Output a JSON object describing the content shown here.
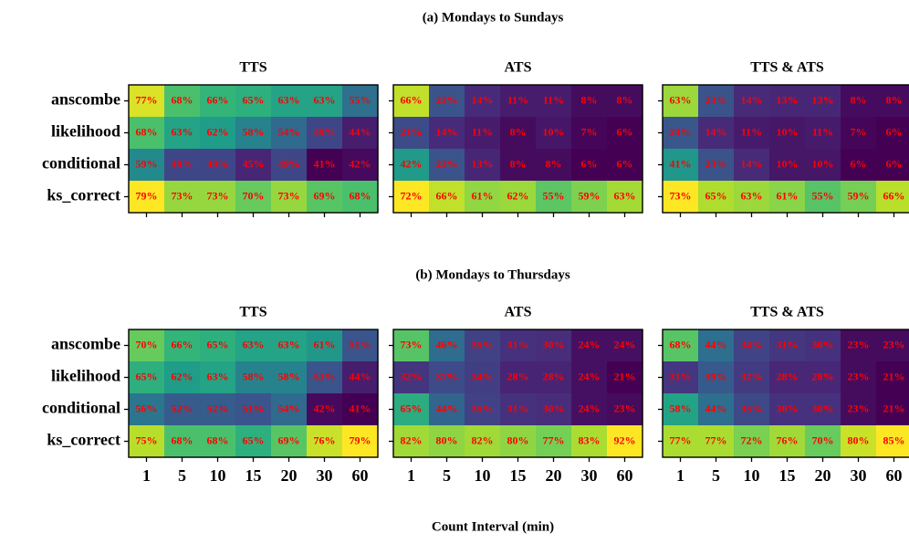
{
  "chart_data": {
    "type": "heatmap",
    "colormap": "viridis",
    "value_label_color": "#ff0000",
    "xlabel": "Count Interval (min)",
    "x_ticks": [
      "1",
      "5",
      "10",
      "15",
      "20",
      "30",
      "60"
    ],
    "y_ticks": [
      "anscombe",
      "likelihood",
      "conditional",
      "ks_correct"
    ],
    "sections": [
      {
        "title": "(a) Mondays to Sundays",
        "panels": [
          {
            "title": "TTS",
            "values": [
              [
                77,
                68,
                66,
                65,
                63,
                63,
                55
              ],
              [
                68,
                63,
                62,
                58,
                54,
                49,
                44
              ],
              [
                59,
                49,
                49,
                45,
                49,
                41,
                42
              ],
              [
                79,
                73,
                73,
                70,
                73,
                69,
                68
              ]
            ]
          },
          {
            "title": "ATS",
            "values": [
              [
                66,
                23,
                14,
                11,
                11,
                8,
                8
              ],
              [
                21,
                14,
                11,
                8,
                10,
                7,
                6
              ],
              [
                42,
                23,
                13,
                8,
                8,
                6,
                6
              ],
              [
                72,
                66,
                61,
                62,
                55,
                59,
                63
              ]
            ]
          },
          {
            "title": "TTS & ATS",
            "values": [
              [
                63,
                23,
                14,
                13,
                13,
                8,
                8
              ],
              [
                24,
                14,
                11,
                10,
                11,
                7,
                6
              ],
              [
                41,
                23,
                14,
                10,
                10,
                6,
                6
              ],
              [
                73,
                65,
                63,
                61,
                55,
                59,
                66
              ]
            ]
          }
        ]
      },
      {
        "title": "(b) Mondays to Thursdays",
        "panels": [
          {
            "title": "TTS",
            "values": [
              [
                70,
                66,
                65,
                63,
                63,
                61,
                51
              ],
              [
                65,
                62,
                63,
                58,
                58,
                51,
                44
              ],
              [
                56,
                52,
                52,
                51,
                54,
                42,
                41
              ],
              [
                75,
                68,
                68,
                65,
                69,
                76,
                79
              ]
            ]
          },
          {
            "title": "ATS",
            "values": [
              [
                73,
                46,
                35,
                31,
                30,
                24,
                24
              ],
              [
                32,
                37,
                34,
                28,
                28,
                24,
                21
              ],
              [
                65,
                44,
                35,
                31,
                30,
                24,
                23
              ],
              [
                82,
                80,
                82,
                80,
                77,
                83,
                92
              ]
            ]
          },
          {
            "title": "TTS & ATS",
            "values": [
              [
                68,
                44,
                34,
                31,
                30,
                23,
                23
              ],
              [
                31,
                39,
                32,
                28,
                28,
                23,
                21
              ],
              [
                58,
                44,
                35,
                30,
                30,
                23,
                21
              ],
              [
                77,
                77,
                72,
                76,
                70,
                80,
                85
              ]
            ]
          }
        ]
      }
    ]
  }
}
